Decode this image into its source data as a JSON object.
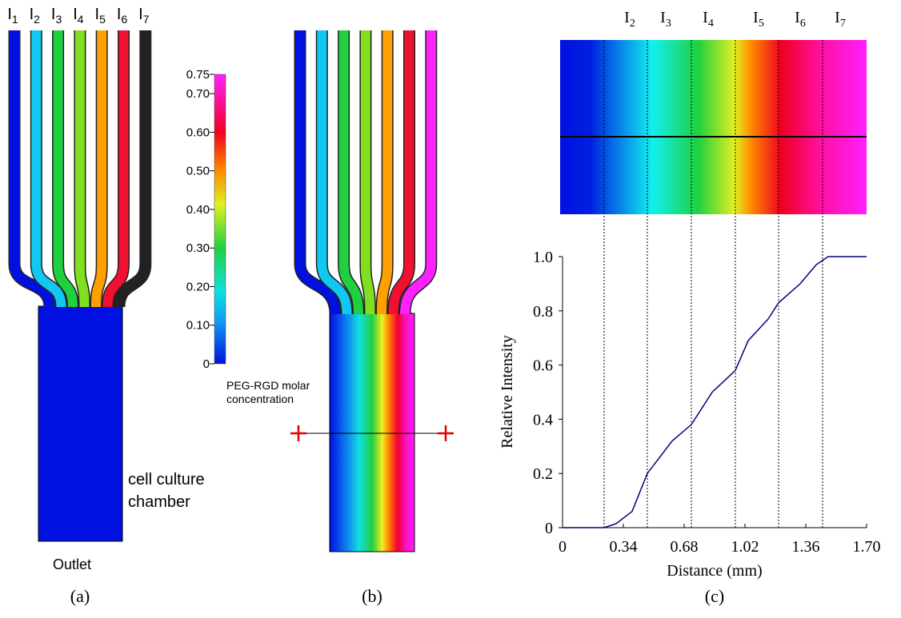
{
  "panel_a": {
    "inlets": [
      {
        "main": "I",
        "sub": "1"
      },
      {
        "main": "I",
        "sub": "2"
      },
      {
        "main": "I",
        "sub": "3"
      },
      {
        "main": "I",
        "sub": "4"
      },
      {
        "main": "I",
        "sub": "5"
      },
      {
        "main": "I",
        "sub": "6"
      },
      {
        "main": "I",
        "sub": "7"
      }
    ],
    "colorbar": {
      "title_lines": [
        "PEG-RGD molar",
        "concentration"
      ],
      "lim": [
        0,
        0.75
      ],
      "ticks": [
        0,
        {
          "value": 0.1,
          "label": "0.10"
        },
        {
          "value": 0.2,
          "label": "0.20"
        },
        {
          "value": 0.3,
          "label": "0.30"
        },
        {
          "value": 0.4,
          "label": "0.40"
        },
        {
          "value": 0.5,
          "label": "0.50"
        },
        {
          "value": 0.6,
          "label": "0.60"
        },
        {
          "value": 0.7,
          "label": "0.70"
        },
        0.75
      ]
    },
    "chamber_label": [
      "cell culture",
      "chamber"
    ],
    "outlet": "Outlet",
    "caption": "(a)"
  },
  "panel_b": {
    "caption": "(b)"
  },
  "chart_data": {
    "type": "line",
    "caption": "(c)",
    "inlet_labels": [
      {
        "main": "I",
        "sub": "2"
      },
      {
        "main": "I",
        "sub": "3"
      },
      {
        "main": "I",
        "sub": "4"
      },
      {
        "main": "I",
        "sub": "5"
      },
      {
        "main": "I",
        "sub": "6"
      },
      {
        "main": "I",
        "sub": "7"
      }
    ],
    "xlabel": "Distance (mm)",
    "ylabel": "Relative Intensity",
    "x": [
      0,
      0.233,
      0.3,
      0.389,
      0.474,
      0.613,
      0.72,
      0.837,
      0.966,
      1.038,
      1.15,
      1.208,
      1.329,
      1.418,
      1.485,
      1.7
    ],
    "series": [
      {
        "color": "#000080",
        "values": [
          0,
          0,
          0.015,
          0.06,
          0.2,
          0.32,
          0.38,
          0.5,
          0.58,
          0.69,
          0.77,
          0.83,
          0.9,
          0.97,
          1.0,
          1.0
        ]
      }
    ],
    "xlim": [
      0,
      1.7
    ],
    "ylim": [
      0,
      1.0
    ],
    "xticks": [
      0,
      0.34,
      0.68,
      1.02,
      1.36,
      {
        "value": 1.7,
        "label": "1.70"
      }
    ],
    "yticks": [
      0,
      0.2,
      0.4,
      0.6,
      0.8,
      {
        "value": 1.0,
        "label": "1.0"
      }
    ]
  }
}
